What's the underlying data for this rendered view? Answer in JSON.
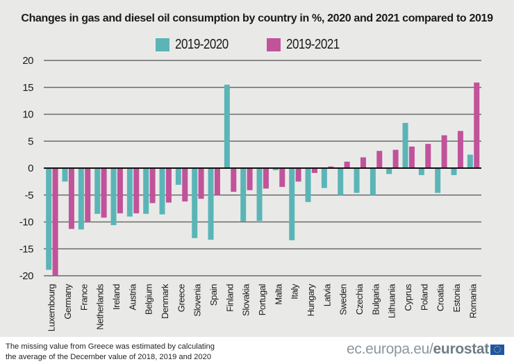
{
  "footer": {
    "note_line1": "The missing value from Greece was estimated by calculating",
    "note_line2": "the average of the December value of 2018, 2019 and 2020",
    "brand_prefix": "ec.europa.eu/",
    "brand_bold": "eurostat"
  },
  "colors": {
    "series_2020": "#5bb5b7",
    "series_2021": "#c1539a",
    "background": "#e9eae8",
    "grid": "#6b6b6b",
    "zero_line": "#111111"
  },
  "chart_data": {
    "type": "bar",
    "title": "Changes in gas and diesel oil consumption by country in %, 2020 and 2021 compared to 2019",
    "xlabel": "",
    "ylabel": "",
    "ylim": [
      -20,
      20
    ],
    "yticks": [
      20,
      15,
      10,
      5,
      0,
      -5,
      -10,
      -15,
      -20
    ],
    "grid": true,
    "legend_position": "top-center",
    "categories": [
      "Luxembourg",
      "Germany",
      "France",
      "Netherlands",
      "Ireland",
      "Austria",
      "Belgium",
      "Denmark",
      "Greece",
      "Slovenia",
      "Spain",
      "Finland",
      "Slovakia",
      "Portugal",
      "Malta",
      "Italy",
      "Hungary",
      "Latvia",
      "Sweden",
      "Czechia",
      "Bulgaria",
      "Lithuania",
      "Cyprus",
      "Poland",
      "Croatia",
      "Estonia",
      "Romania"
    ],
    "series": [
      {
        "name": "2019-2020",
        "values": [
          -18.9,
          -2.5,
          -11.4,
          -8.5,
          -10.6,
          -9.0,
          -8.5,
          -8.6,
          -3.1,
          -13.0,
          -13.3,
          15.5,
          -9.9,
          -9.8,
          -0.4,
          -13.4,
          -6.3,
          -3.7,
          -5.0,
          -4.6,
          -5.0,
          -1.1,
          8.4,
          -1.3,
          -4.6,
          -1.3,
          2.5
        ]
      },
      {
        "name": "2019-2021",
        "values": [
          -20.0,
          -11.3,
          -9.9,
          -9.2,
          -8.4,
          -8.4,
          -6.5,
          -6.4,
          -6.2,
          -5.7,
          -5.0,
          -4.4,
          -4.1,
          -3.8,
          -3.5,
          -2.5,
          -0.9,
          0.3,
          1.2,
          2.0,
          3.2,
          3.4,
          4.0,
          4.5,
          6.1,
          6.9,
          15.9
        ]
      }
    ]
  }
}
